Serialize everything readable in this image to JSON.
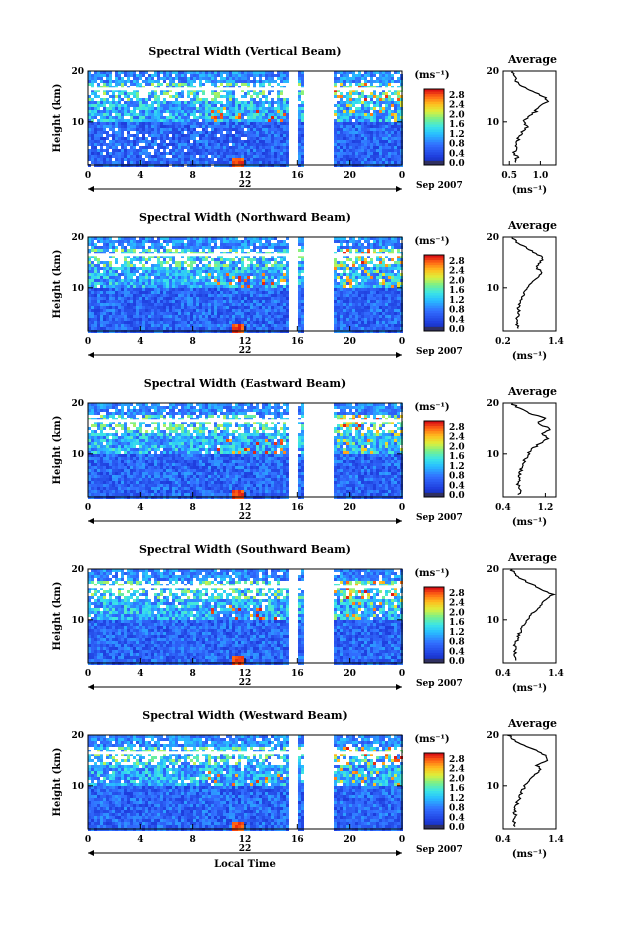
{
  "chart_data": [
    {
      "type": "heatmap",
      "title": "Spectral Width (Vertical Beam)",
      "ylabel": "Height (km)",
      "xlabel": "",
      "x_ticks": [
        "0",
        "4",
        "8",
        "12",
        "16",
        "20",
        "0"
      ],
      "y_ticks": [
        "20",
        "10"
      ],
      "xlim": [
        0,
        24
      ],
      "ylim": [
        1.5,
        20
      ],
      "date_day": "22",
      "date_label": "Sep 2007",
      "colorbar": {
        "unit": "(ms⁻¹)",
        "ticks": [
          "2.8",
          "2.4",
          "2.0",
          "1.6",
          "1.2",
          "0.8",
          "0.4",
          "0.0"
        ],
        "range": [
          0,
          3.0
        ]
      },
      "data_gap_hours": [
        [
          15.3,
          15.9
        ],
        [
          16.3,
          18.7
        ]
      ],
      "tropopause_km": 16.5,
      "average": {
        "title": "Average",
        "xlabel": "(ms⁻¹)",
        "x_ticks": [
          "0.5",
          "1.0"
        ],
        "y_ticks": [
          "20",
          "10"
        ],
        "xlim": [
          0.4,
          1.25
        ],
        "height_km": [
          2,
          3,
          4,
          5,
          6,
          7,
          8,
          9,
          10,
          11,
          12,
          13,
          14,
          15,
          16,
          17,
          18,
          19,
          20
        ],
        "width_ms": [
          0.6,
          0.62,
          0.58,
          0.6,
          0.62,
          0.65,
          0.7,
          0.78,
          0.72,
          0.8,
          0.92,
          0.95,
          1.15,
          1.05,
          0.85,
          0.7,
          0.62,
          0.58,
          0.55
        ]
      }
    },
    {
      "type": "heatmap",
      "title": "Spectral Width (Northward Beam)",
      "ylabel": "Height (km)",
      "xlabel": "",
      "x_ticks": [
        "0",
        "4",
        "8",
        "12",
        "16",
        "20",
        "0"
      ],
      "y_ticks": [
        "20",
        "10"
      ],
      "xlim": [
        0,
        24
      ],
      "ylim": [
        1.5,
        20
      ],
      "date_day": "22",
      "date_label": "Sep 2007",
      "colorbar": {
        "unit": "(ms⁻¹)",
        "ticks": [
          "2.8",
          "2.4",
          "2.0",
          "1.6",
          "1.2",
          "0.8",
          "0.4",
          "0.0"
        ],
        "range": [
          0,
          3.0
        ]
      },
      "data_gap_hours": [
        [
          15.3,
          15.9
        ],
        [
          16.3,
          18.7
        ]
      ],
      "tropopause_km": 16.5,
      "average": {
        "title": "Average",
        "xlabel": "(ms⁻¹)",
        "x_ticks": [
          "0.2",
          "1.4"
        ],
        "y_ticks": [
          "20",
          "10"
        ],
        "xlim": [
          0.2,
          1.4
        ],
        "height_km": [
          2,
          3,
          4,
          5,
          6,
          7,
          8,
          9,
          10,
          11,
          12,
          13,
          14,
          15,
          16,
          17,
          18,
          19,
          20
        ],
        "width_ms": [
          0.55,
          0.5,
          0.52,
          0.56,
          0.55,
          0.58,
          0.62,
          0.68,
          0.72,
          0.85,
          1.0,
          1.1,
          0.95,
          1.05,
          1.1,
          0.9,
          0.7,
          0.5,
          0.4
        ]
      }
    },
    {
      "type": "heatmap",
      "title": "Spectral Width (Eastward Beam)",
      "ylabel": "Height (km)",
      "xlabel": "",
      "x_ticks": [
        "0",
        "4",
        "8",
        "12",
        "16",
        "20",
        "0"
      ],
      "y_ticks": [
        "20",
        "10"
      ],
      "xlim": [
        0,
        24
      ],
      "ylim": [
        1.5,
        20
      ],
      "date_day": "22",
      "date_label": "Sep 2007",
      "colorbar": {
        "unit": "(ms⁻¹)",
        "ticks": [
          "2.8",
          "2.4",
          "2.0",
          "1.6",
          "1.2",
          "0.8",
          "0.4",
          "0.0"
        ],
        "range": [
          0,
          3.0
        ]
      },
      "data_gap_hours": [
        [
          15.3,
          15.9
        ],
        [
          16.3,
          18.7
        ]
      ],
      "tropopause_km": 16.5,
      "average": {
        "title": "Average",
        "xlabel": "(ms⁻¹)",
        "x_ticks": [
          "0.4",
          "1.2"
        ],
        "y_ticks": [
          "20",
          "10"
        ],
        "xlim": [
          0.4,
          1.4
        ],
        "height_km": [
          2,
          3,
          4,
          5,
          6,
          7,
          8,
          9,
          10,
          11,
          12,
          13,
          14,
          15,
          16,
          17,
          18,
          19,
          20
        ],
        "width_ms": [
          0.7,
          0.72,
          0.68,
          0.7,
          0.72,
          0.74,
          0.78,
          0.82,
          0.88,
          0.95,
          1.1,
          1.25,
          1.15,
          1.3,
          1.05,
          1.2,
          0.9,
          0.7,
          0.55
        ]
      }
    },
    {
      "type": "heatmap",
      "title": "Spectral Width (Southward Beam)",
      "ylabel": "Height (km)",
      "xlabel": "",
      "x_ticks": [
        "0",
        "4",
        "8",
        "12",
        "16",
        "20",
        "0"
      ],
      "y_ticks": [
        "20",
        "10"
      ],
      "xlim": [
        0,
        24
      ],
      "ylim": [
        1.5,
        20
      ],
      "date_day": "22",
      "date_label": "Sep 2007",
      "colorbar": {
        "unit": "(ms⁻¹)",
        "ticks": [
          "2.8",
          "2.4",
          "2.0",
          "1.6",
          "1.2",
          "0.8",
          "0.4",
          "0.0"
        ],
        "range": [
          0,
          3.0
        ]
      },
      "data_gap_hours": [
        [
          15.3,
          15.9
        ],
        [
          16.3,
          18.7
        ]
      ],
      "tropopause_km": 16.5,
      "average": {
        "title": "Average",
        "xlabel": "(ms⁻¹)",
        "x_ticks": [
          "0.4",
          "1.4"
        ],
        "y_ticks": [
          "20",
          "10"
        ],
        "xlim": [
          0.4,
          1.4
        ],
        "height_km": [
          2,
          3,
          4,
          5,
          6,
          7,
          8,
          9,
          10,
          11,
          12,
          13,
          14,
          15,
          16,
          17,
          18,
          19,
          20
        ],
        "width_ms": [
          0.62,
          0.6,
          0.64,
          0.62,
          0.66,
          0.7,
          0.74,
          0.78,
          0.85,
          0.92,
          1.05,
          1.15,
          1.2,
          1.35,
          1.1,
          0.95,
          0.75,
          0.62,
          0.55
        ]
      }
    },
    {
      "type": "heatmap",
      "title": "Spectral Width (Westward Beam)",
      "ylabel": "Height (km)",
      "xlabel": "Local Time",
      "x_ticks": [
        "0",
        "4",
        "8",
        "12",
        "16",
        "20",
        "0"
      ],
      "y_ticks": [
        "20",
        "10"
      ],
      "xlim": [
        0,
        24
      ],
      "ylim": [
        1.5,
        20
      ],
      "date_day": "22",
      "date_label": "Sep 2007",
      "colorbar": {
        "unit": "(ms⁻¹)",
        "ticks": [
          "2.8",
          "2.4",
          "2.0",
          "1.6",
          "1.2",
          "0.8",
          "0.4",
          "0.0"
        ],
        "range": [
          0,
          3.0
        ]
      },
      "data_gap_hours": [
        [
          15.3,
          15.9
        ],
        [
          16.3,
          18.7
        ]
      ],
      "tropopause_km": 16.5,
      "average": {
        "title": "Average",
        "xlabel": "(ms⁻¹)",
        "x_ticks": [
          "0.4",
          "1.4"
        ],
        "y_ticks": [
          "20",
          "10"
        ],
        "xlim": [
          0.4,
          1.4
        ],
        "height_km": [
          2,
          3,
          4,
          5,
          6,
          7,
          8,
          9,
          10,
          11,
          12,
          13,
          14,
          15,
          16,
          17,
          18,
          19,
          20
        ],
        "width_ms": [
          0.62,
          0.6,
          0.63,
          0.62,
          0.64,
          0.68,
          0.72,
          0.76,
          0.82,
          0.9,
          1.0,
          1.1,
          1.05,
          1.25,
          1.2,
          1.0,
          0.8,
          0.6,
          0.5
        ]
      }
    }
  ]
}
